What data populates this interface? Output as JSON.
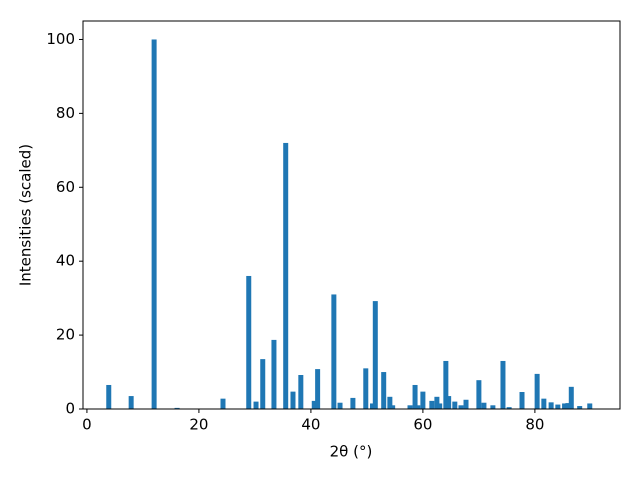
{
  "chart_data": {
    "type": "bar",
    "xlabel": "2θ (°)",
    "ylabel": "Intensities (scaled)",
    "x": [
      3.9,
      7.9,
      12.0,
      16.1,
      24.3,
      28.9,
      30.2,
      31.4,
      33.4,
      35.5,
      36.8,
      38.2,
      40.6,
      41.2,
      44.1,
      45.2,
      47.5,
      49.8,
      51.0,
      51.5,
      53.0,
      54.1,
      54.6,
      57.7,
      58.6,
      59.1,
      60.0,
      61.6,
      62.5,
      63.0,
      64.1,
      64.6,
      65.7,
      66.8,
      67.7,
      70.0,
      70.9,
      72.5,
      74.3,
      75.4,
      77.7,
      80.4,
      81.6,
      82.9,
      84.1,
      85.3,
      85.9,
      86.5,
      88.0,
      89.8
    ],
    "values": [
      6.5,
      3.5,
      100,
      0.3,
      2.8,
      36,
      2,
      13.5,
      18.7,
      72,
      4.7,
      9.2,
      2.2,
      10.8,
      31,
      1.7,
      3,
      11,
      1.5,
      29.2,
      10,
      3.3,
      1,
      1,
      6.5,
      1,
      4.7,
      2.2,
      3.3,
      1.5,
      13,
      3.5,
      2,
      1,
      2.5,
      7.8,
      1.7,
      1,
      13,
      0.5,
      4.6,
      9.5,
      2.8,
      1.8,
      1.2,
      1.5,
      1.6,
      6,
      0.8,
      1.5
    ],
    "color": "#1f77b4",
    "xlim": [
      -0.7,
      95.2
    ],
    "xticks": [
      0,
      20,
      40,
      60,
      80
    ],
    "ylim": [
      0,
      105
    ],
    "yticks": [
      0,
      20,
      40,
      60,
      80,
      100
    ]
  }
}
